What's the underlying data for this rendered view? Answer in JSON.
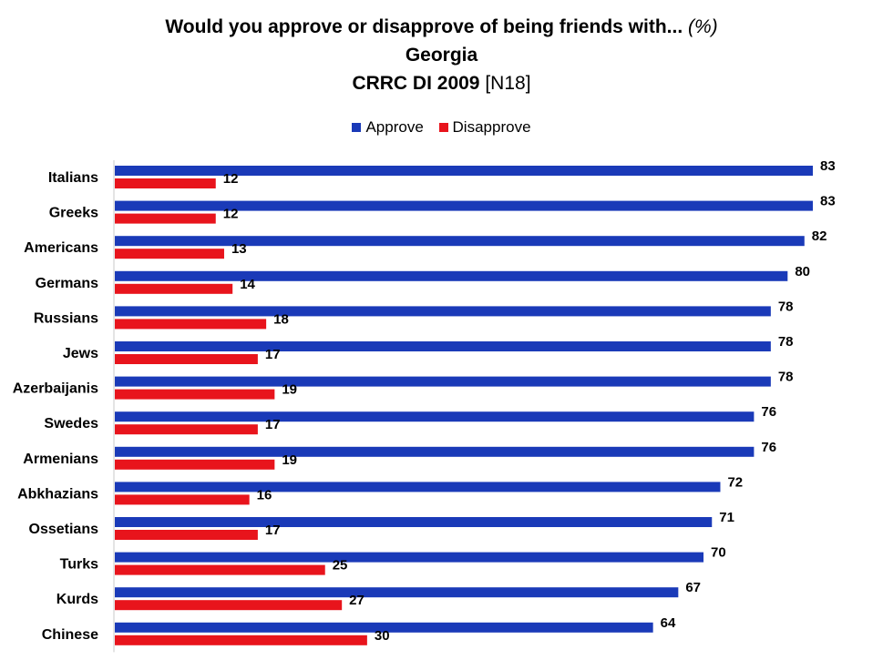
{
  "chart_data": {
    "type": "bar",
    "orientation": "horizontal",
    "title": "Would you approve or disapprove of being friends with...",
    "title_suffix": "(%)",
    "subtitle": "Georgia",
    "source_bold": "CRRC DI 2009",
    "source_code": "[N18]",
    "categories": [
      "Italians",
      "Greeks",
      "Americans",
      "Germans",
      "Russians",
      "Jews",
      "Azerbaijanis",
      "Swedes",
      "Armenians",
      "Abkhazians",
      "Ossetians",
      "Turks",
      "Kurds",
      "Chinese"
    ],
    "series": [
      {
        "name": "Approve",
        "color": "#1a3ab8",
        "values": [
          83,
          83,
          82,
          80,
          78,
          78,
          78,
          76,
          76,
          72,
          71,
          70,
          67,
          64
        ]
      },
      {
        "name": "Disapprove",
        "color": "#e8141c",
        "values": [
          12,
          12,
          13,
          14,
          18,
          17,
          19,
          17,
          19,
          16,
          17,
          25,
          27,
          30
        ]
      }
    ],
    "xlim": [
      0,
      83
    ],
    "legend": "top-center",
    "grid": false
  }
}
